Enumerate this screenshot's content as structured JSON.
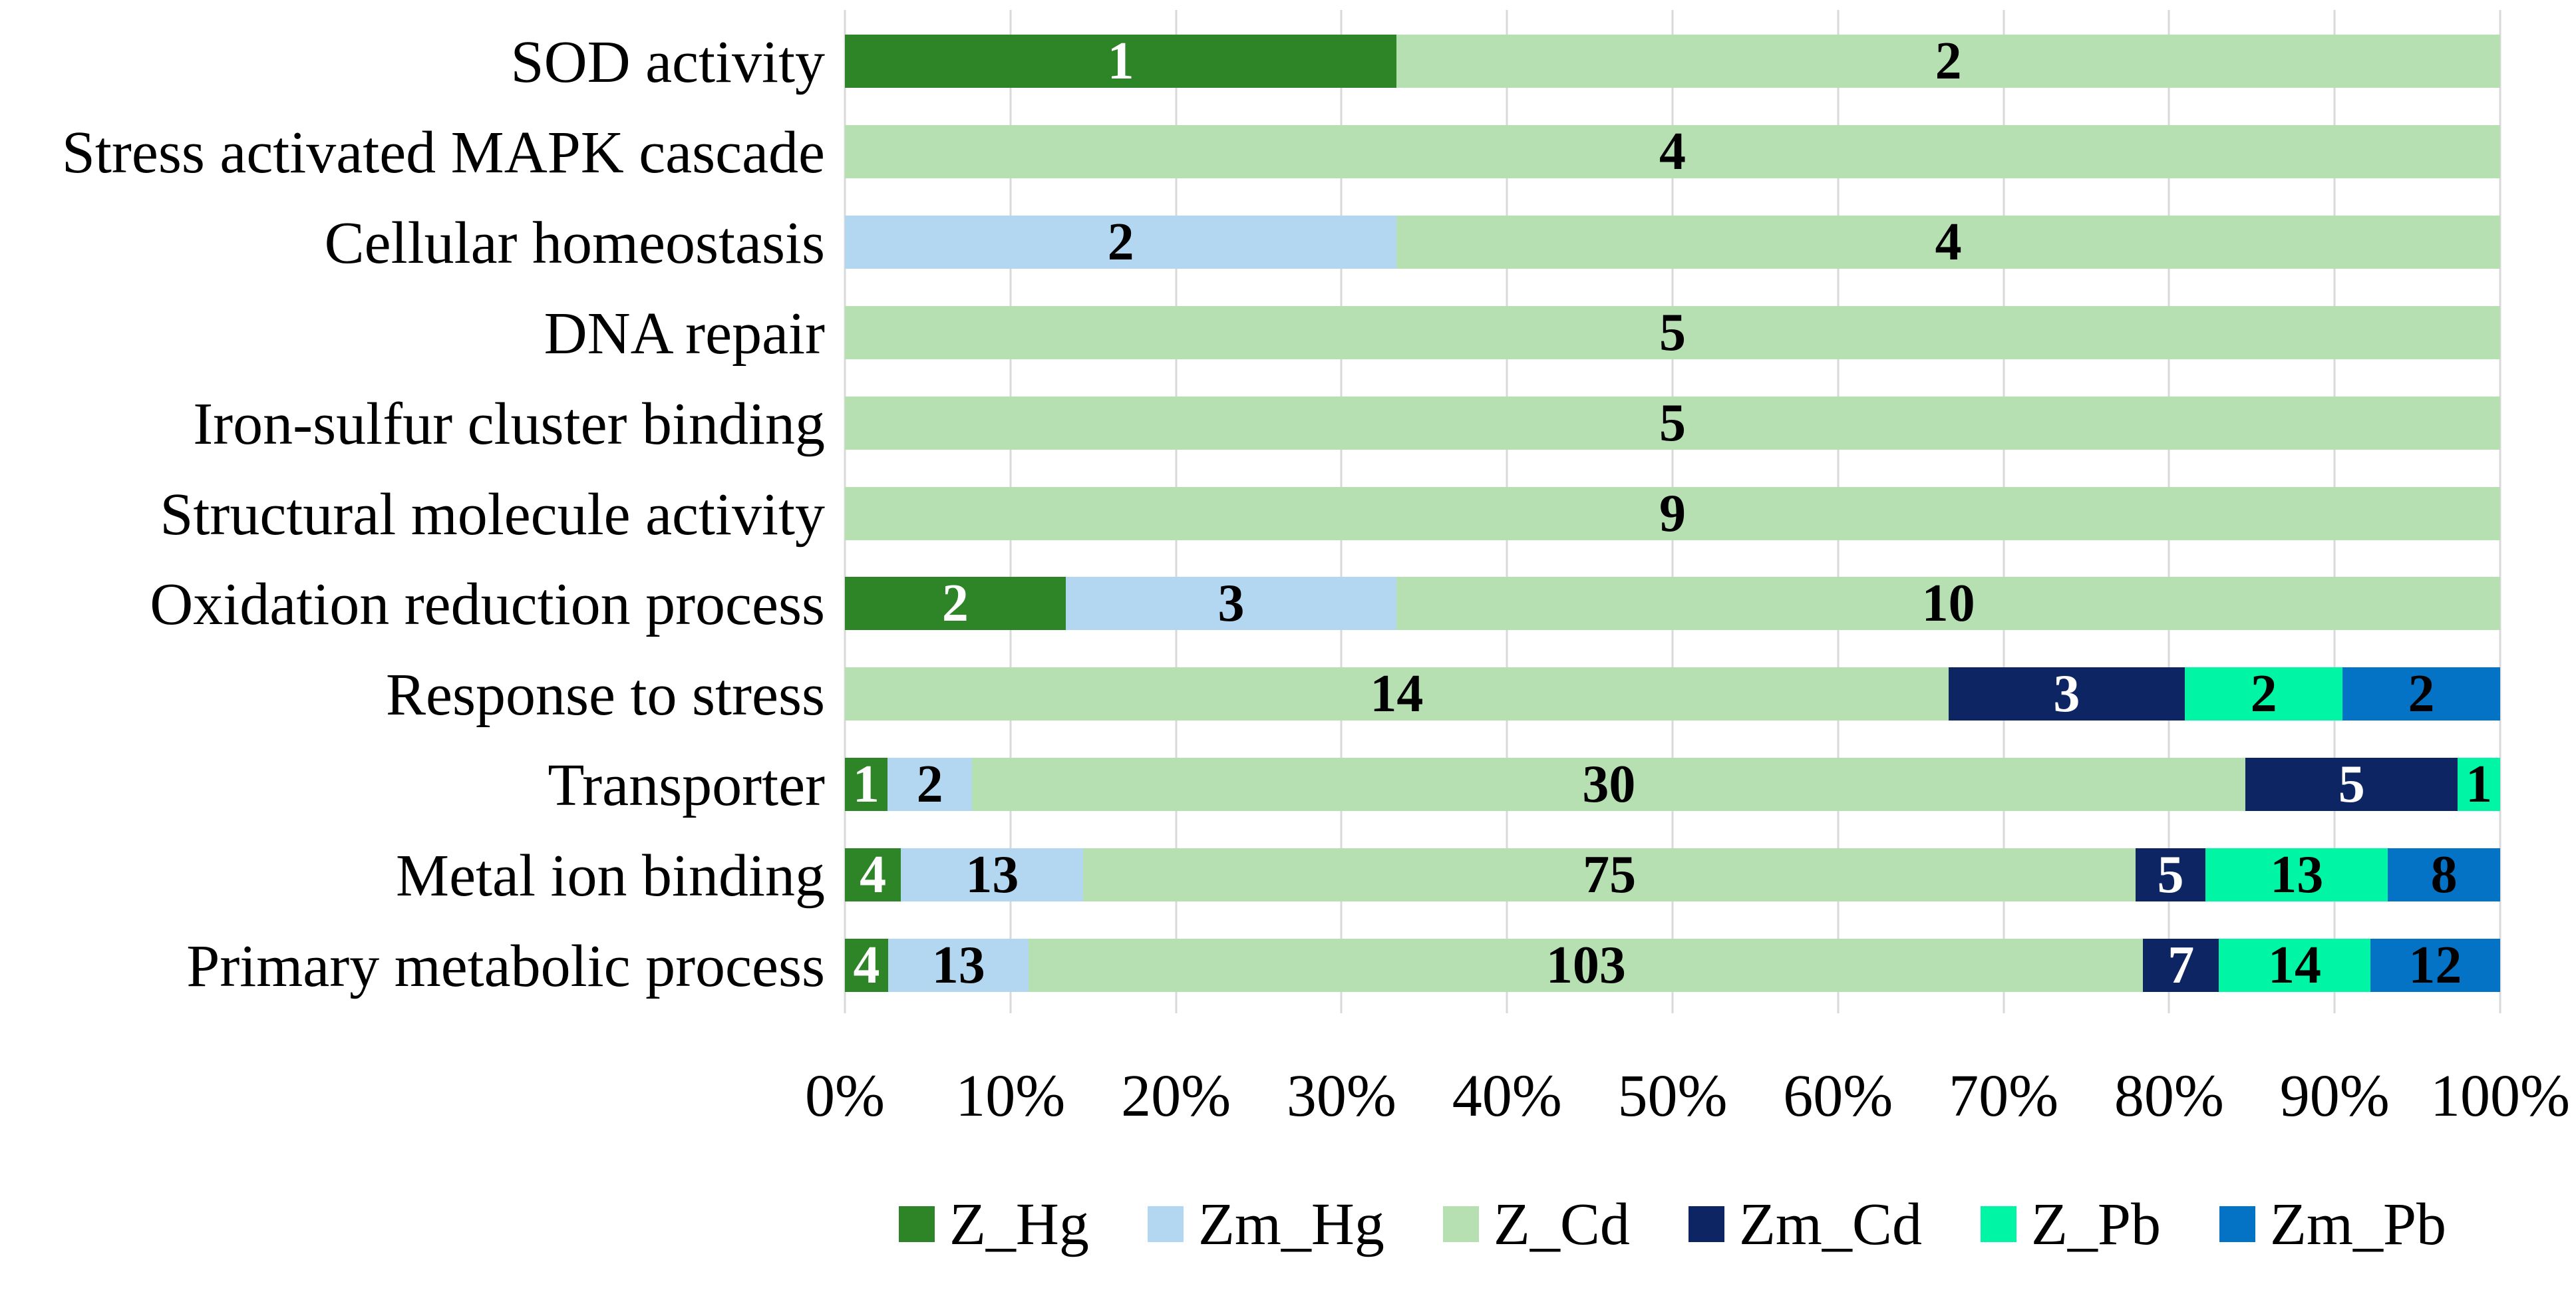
{
  "chart_data": {
    "type": "bar",
    "subtype": "100%-stacked-horizontal",
    "grid": "vertical-lines-on",
    "legend_position": "bottom-center",
    "x_axis": {
      "min": 0,
      "max": 100,
      "tick_labels": [
        "0%",
        "10%",
        "20%",
        "30%",
        "40%",
        "50%",
        "60%",
        "70%",
        "80%",
        "90%",
        "100%"
      ]
    },
    "series": [
      {
        "name": "Z_Hg",
        "color": "#2e8528",
        "label_color": "#ffffff"
      },
      {
        "name": "Zm_Hg",
        "color": "#b3d7f0",
        "label_color": "#000000"
      },
      {
        "name": "Z_Cd",
        "color": "#b6e0b2",
        "label_color": "#000000"
      },
      {
        "name": "Zm_Cd",
        "color": "#0d2562",
        "label_color": "#ffffff"
      },
      {
        "name": "Z_Pb",
        "color": "#00f5a4",
        "label_color": "#000000"
      },
      {
        "name": "Zm_Pb",
        "color": "#0473c5",
        "label_color": "#000000"
      }
    ],
    "categories": [
      {
        "label": "SOD activity",
        "segments": [
          {
            "series": "Z_Hg",
            "value": 1
          },
          {
            "series": "Z_Cd",
            "value": 2
          }
        ]
      },
      {
        "label": "Stress activated MAPK cascade",
        "segments": [
          {
            "series": "Z_Cd",
            "value": 4
          }
        ]
      },
      {
        "label": "Cellular homeostasis",
        "segments": [
          {
            "series": "Zm_Hg",
            "value": 2
          },
          {
            "series": "Z_Cd",
            "value": 4
          }
        ]
      },
      {
        "label": "DNA repair",
        "segments": [
          {
            "series": "Z_Cd",
            "value": 5
          }
        ]
      },
      {
        "label": "Iron-sulfur cluster binding",
        "segments": [
          {
            "series": "Z_Cd",
            "value": 5
          }
        ]
      },
      {
        "label": "Structural molecule activity",
        "segments": [
          {
            "series": "Z_Cd",
            "value": 9
          }
        ]
      },
      {
        "label": "Oxidation reduction process",
        "segments": [
          {
            "series": "Z_Hg",
            "value": 2
          },
          {
            "series": "Zm_Hg",
            "value": 3
          },
          {
            "series": "Z_Cd",
            "value": 10
          }
        ]
      },
      {
        "label": "Response to stress",
        "segments": [
          {
            "series": "Z_Cd",
            "value": 14
          },
          {
            "series": "Zm_Cd",
            "value": 3
          },
          {
            "series": "Z_Pb",
            "value": 2
          },
          {
            "series": "Zm_Pb",
            "value": 2
          }
        ]
      },
      {
        "label": "Transporter",
        "segments": [
          {
            "series": "Z_Hg",
            "value": 1
          },
          {
            "series": "Zm_Hg",
            "value": 2
          },
          {
            "series": "Z_Cd",
            "value": 30
          },
          {
            "series": "Zm_Cd",
            "value": 5
          },
          {
            "series": "Z_Pb",
            "value": 1
          }
        ]
      },
      {
        "label": "Metal ion binding",
        "segments": [
          {
            "series": "Z_Hg",
            "value": 4
          },
          {
            "series": "Zm_Hg",
            "value": 13
          },
          {
            "series": "Z_Cd",
            "value": 75
          },
          {
            "series": "Zm_Cd",
            "value": 5
          },
          {
            "series": "Z_Pb",
            "value": 13
          },
          {
            "series": "Zm_Pb",
            "value": 8
          }
        ]
      },
      {
        "label": "Primary metabolic process",
        "segments": [
          {
            "series": "Z_Hg",
            "value": 4
          },
          {
            "series": "Zm_Hg",
            "value": 13
          },
          {
            "series": "Z_Cd",
            "value": 103
          },
          {
            "series": "Zm_Cd",
            "value": 7
          },
          {
            "series": "Z_Pb",
            "value": 14
          },
          {
            "series": "Zm_Pb",
            "value": 12
          }
        ]
      }
    ],
    "style": {
      "gridline_color": "#d9d9d9",
      "background": "#ffffff"
    }
  }
}
